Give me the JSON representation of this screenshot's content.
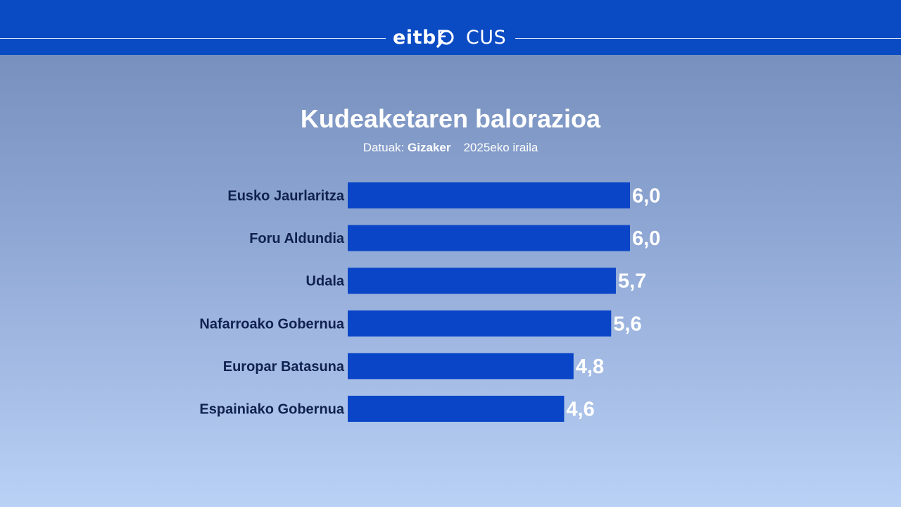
{
  "header": {
    "logo_part1": "eitb",
    "logo_part2": "F",
    "logo_part3": "CUS",
    "bar_color": "#0a4bc4"
  },
  "chart_data": {
    "type": "bar",
    "orientation": "horizontal",
    "title": "Kudeaketaren balorazioa",
    "source_label": "Datuak:",
    "source_name": "Gizaker",
    "date": "2025eko iraila",
    "categories": [
      "Eusko Jaurlaritza",
      "Foru Aldundia",
      "Udala",
      "Nafarroako Gobernua",
      "Europar Batasuna",
      "Espainiako Gobernua"
    ],
    "values": [
      6.0,
      6.0,
      5.7,
      5.6,
      4.8,
      4.6
    ],
    "value_labels": [
      "6,0",
      "6,0",
      "5,7",
      "5,6",
      "4,8",
      "4,6"
    ],
    "xlim": [
      0,
      6.0
    ],
    "bar_color": "#0a45c8",
    "grid": false,
    "legend": "none"
  }
}
